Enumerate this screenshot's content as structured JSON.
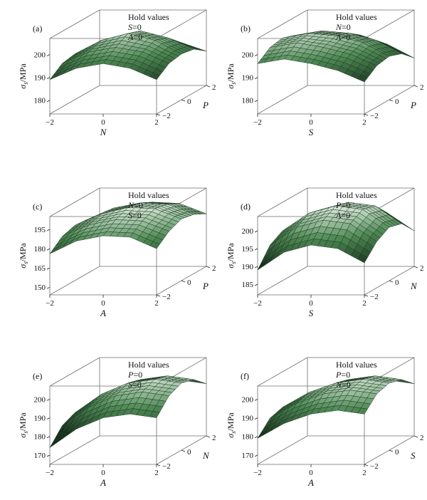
{
  "colors": {
    "surface_light": "#f4fbf4",
    "surface_mid": "#4f8a55",
    "surface_dark": "#17301b",
    "box": "#6e6e6e"
  },
  "chart_data": [
    {
      "type": "surface3d",
      "panel": "(a)",
      "hold_title": "Hold values",
      "hold": [
        {
          "var": "S",
          "eq": "=0"
        },
        {
          "var": "A",
          "eq": "=0"
        }
      ],
      "x_label": "N",
      "y_label": "P",
      "z_label": "σs/MPa",
      "x_ticks": [
        "−2",
        "0",
        "2"
      ],
      "y_ticks": [
        "−2",
        "0",
        "2"
      ],
      "z_ticks": [
        "180",
        "190",
        "200"
      ],
      "xlim": [
        -2,
        2
      ],
      "ylim": [
        -2,
        2
      ],
      "zlim": [
        174,
        207
      ],
      "x": [
        -2,
        -1,
        0,
        1,
        2
      ],
      "y": [
        -2,
        -1,
        0,
        1,
        2
      ],
      "z": [
        [
          189,
          194,
          196,
          194,
          189
        ],
        [
          193,
          198,
          200,
          198,
          193
        ],
        [
          194,
          200,
          203,
          200,
          194
        ],
        [
          193,
          198,
          201,
          198,
          193
        ],
        [
          189,
          193,
          196,
          193,
          189
        ]
      ]
    },
    {
      "type": "surface3d",
      "panel": "(b)",
      "hold_title": "Hold values",
      "hold": [
        {
          "var": "N",
          "eq": "=0"
        },
        {
          "var": "A",
          "eq": "=0"
        }
      ],
      "x_label": "S",
      "y_label": "P",
      "z_label": "σs/MPa",
      "x_ticks": [
        "−2",
        "0",
        "2"
      ],
      "y_ticks": [
        "−2",
        "0",
        "2"
      ],
      "z_ticks": [
        "180",
        "190",
        "200"
      ],
      "xlim": [
        -2,
        2
      ],
      "ylim": [
        -2,
        2
      ],
      "zlim": [
        174,
        207
      ],
      "x": [
        -2,
        -1,
        0,
        1,
        2
      ],
      "y": [
        -2,
        -1,
        0,
        1,
        2
      ],
      "z": [
        [
          196,
          198,
          196,
          193,
          188
        ],
        [
          200,
          202,
          200,
          197,
          192
        ],
        [
          201,
          203,
          202,
          199,
          193
        ],
        [
          199,
          201,
          200,
          197,
          191
        ],
        [
          194,
          197,
          196,
          192,
          186
        ]
      ]
    },
    {
      "type": "surface3d",
      "panel": "(c)",
      "hold_title": "Hold values",
      "hold": [
        {
          "var": "N",
          "eq": "=0"
        },
        {
          "var": "S",
          "eq": "=0"
        }
      ],
      "x_label": "A",
      "y_label": "P",
      "z_label": "σs/MPa",
      "x_ticks": [
        "−2",
        "0",
        "2"
      ],
      "y_ticks": [
        "−2",
        "0",
        "2"
      ],
      "z_ticks": [
        "150",
        "165",
        "180",
        "195"
      ],
      "xlim": [
        -2,
        2
      ],
      "ylim": [
        -2,
        2
      ],
      "zlim": [
        144,
        205
      ],
      "x": [
        -2,
        -1,
        0,
        1,
        2
      ],
      "y": [
        -2,
        -1,
        0,
        1,
        2
      ],
      "z": [
        [
          176,
          186,
          190,
          189,
          180
        ],
        [
          184,
          193,
          197,
          196,
          188
        ],
        [
          187,
          196,
          201,
          200,
          192
        ],
        [
          186,
          195,
          199,
          198,
          190
        ],
        [
          181,
          190,
          194,
          193,
          185
        ]
      ]
    },
    {
      "type": "surface3d",
      "panel": "(d)",
      "hold_title": "Hold values",
      "hold": [
        {
          "var": "P",
          "eq": "=0"
        },
        {
          "var": "A",
          "eq": "=0"
        }
      ],
      "x_label": "S",
      "y_label": "N",
      "z_label": "σs/MPa",
      "x_ticks": [
        "−2",
        "0",
        "2"
      ],
      "y_ticks": [
        "−2",
        "0",
        "2"
      ],
      "z_ticks": [
        "185",
        "190",
        "195",
        "200"
      ],
      "xlim": [
        -2,
        2
      ],
      "ylim": [
        -2,
        2
      ],
      "zlim": [
        182,
        204
      ],
      "x": [
        -2,
        -1,
        0,
        1,
        2
      ],
      "y": [
        -2,
        -1,
        0,
        1,
        2
      ],
      "z": [
        [
          189,
          194,
          196,
          195,
          191
        ],
        [
          194,
          199,
          201,
          200,
          195
        ],
        [
          196,
          201,
          203,
          202,
          197
        ],
        [
          195,
          200,
          202,
          201,
          196
        ],
        [
          191,
          196,
          198,
          197,
          192
        ]
      ]
    },
    {
      "type": "surface3d",
      "panel": "(e)",
      "hold_title": "Hold values",
      "hold": [
        {
          "var": "P",
          "eq": "=0"
        },
        {
          "var": "S",
          "eq": "=0"
        }
      ],
      "x_label": "A",
      "y_label": "N",
      "z_label": "σs/MPa",
      "x_ticks": [
        "−2",
        "0",
        "2"
      ],
      "y_ticks": [
        "−2",
        "0",
        "2"
      ],
      "z_ticks": [
        "170",
        "180",
        "190",
        "200"
      ],
      "xlim": [
        -2,
        2
      ],
      "ylim": [
        -2,
        2
      ],
      "zlim": [
        165,
        207
      ],
      "x": [
        -2,
        -1,
        0,
        1,
        2
      ],
      "y": [
        -2,
        -1,
        0,
        1,
        2
      ],
      "z": [
        [
          174,
          184,
          190,
          192,
          190
        ],
        [
          182,
          192,
          198,
          200,
          198
        ],
        [
          185,
          195,
          201,
          203,
          201
        ],
        [
          183,
          193,
          199,
          201,
          199
        ],
        [
          177,
          187,
          193,
          195,
          193
        ]
      ]
    },
    {
      "type": "surface3d",
      "panel": "(f)",
      "hold_title": "Hold values",
      "hold": [
        {
          "var": "P",
          "eq": "=0"
        },
        {
          "var": "N",
          "eq": "=0"
        }
      ],
      "x_label": "A",
      "y_label": "S",
      "z_label": "σs/MPa",
      "x_ticks": [
        "−2",
        "0",
        "2"
      ],
      "y_ticks": [
        "−2",
        "0",
        "2"
      ],
      "z_ticks": [
        "170",
        "180",
        "190",
        "200"
      ],
      "xlim": [
        -2,
        2
      ],
      "ylim": [
        -2,
        2
      ],
      "zlim": [
        165,
        207
      ],
      "x": [
        -2,
        -1,
        0,
        1,
        2
      ],
      "y": [
        -2,
        -1,
        0,
        1,
        2
      ],
      "z": [
        [
          179,
          187,
          192,
          194,
          192
        ],
        [
          186,
          194,
          199,
          201,
          199
        ],
        [
          188,
          196,
          201,
          203,
          201
        ],
        [
          186,
          194,
          199,
          201,
          199
        ],
        [
          180,
          188,
          193,
          195,
          193
        ]
      ]
    }
  ]
}
